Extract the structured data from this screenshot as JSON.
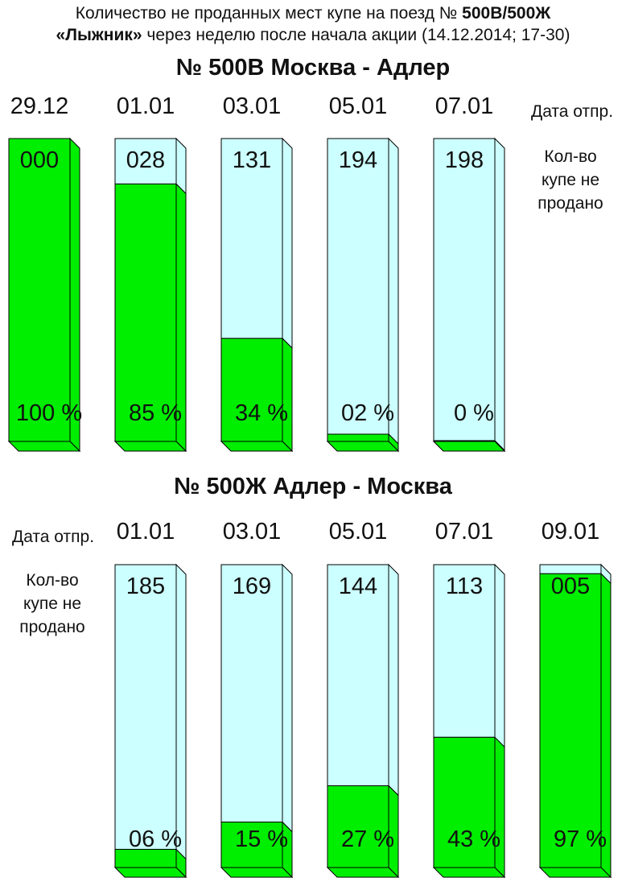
{
  "title": {
    "line1_prefix": "Количество не проданных мест купе на поезд № ",
    "line1_bold": "500В/500Ж",
    "line2_bold": "«Лыжник»",
    "line2_rest": " через неделю после начала акции (14.12.2014; 17-30)"
  },
  "colors": {
    "sold": "#00ee00",
    "unsold": "#ccffff",
    "outline": "#000000"
  },
  "chart_data": [
    {
      "type": "bar",
      "title": "№ 500В Москва - Адлер",
      "side_labels": {
        "date": "Дата отпр.",
        "count": "Кол-во купе не продано",
        "count_lines": [
          "Кол-во",
          "купе не",
          "продано"
        ]
      },
      "categories": [
        "29.12",
        "01.01",
        "03.01",
        "05.01",
        "07.01"
      ],
      "unsold_labels": [
        "000",
        "028",
        "131",
        "194",
        "198"
      ],
      "unsold_count": [
        0,
        28,
        131,
        194,
        198
      ],
      "percent_labels": [
        "100 %",
        "85 %",
        "34 %",
        "02 %",
        "0 %"
      ],
      "percent_sold": [
        100,
        85,
        34,
        2,
        0
      ]
    },
    {
      "type": "bar",
      "title": "№ 500Ж Адлер - Москва",
      "side_labels": {
        "date": "Дата отпр.",
        "count": "Кол-во купе не продано",
        "count_lines": [
          "Кол-во",
          "купе не",
          "продано"
        ]
      },
      "categories": [
        "01.01",
        "03.01",
        "05.01",
        "07.01",
        "09.01"
      ],
      "unsold_labels": [
        "185",
        "169",
        "144",
        "113",
        "005"
      ],
      "unsold_count": [
        185,
        169,
        144,
        113,
        5
      ],
      "percent_labels": [
        "06 %",
        "15 %",
        "27 %",
        "43 %",
        "97 %"
      ],
      "percent_sold": [
        6,
        15,
        27,
        43,
        97
      ]
    }
  ]
}
